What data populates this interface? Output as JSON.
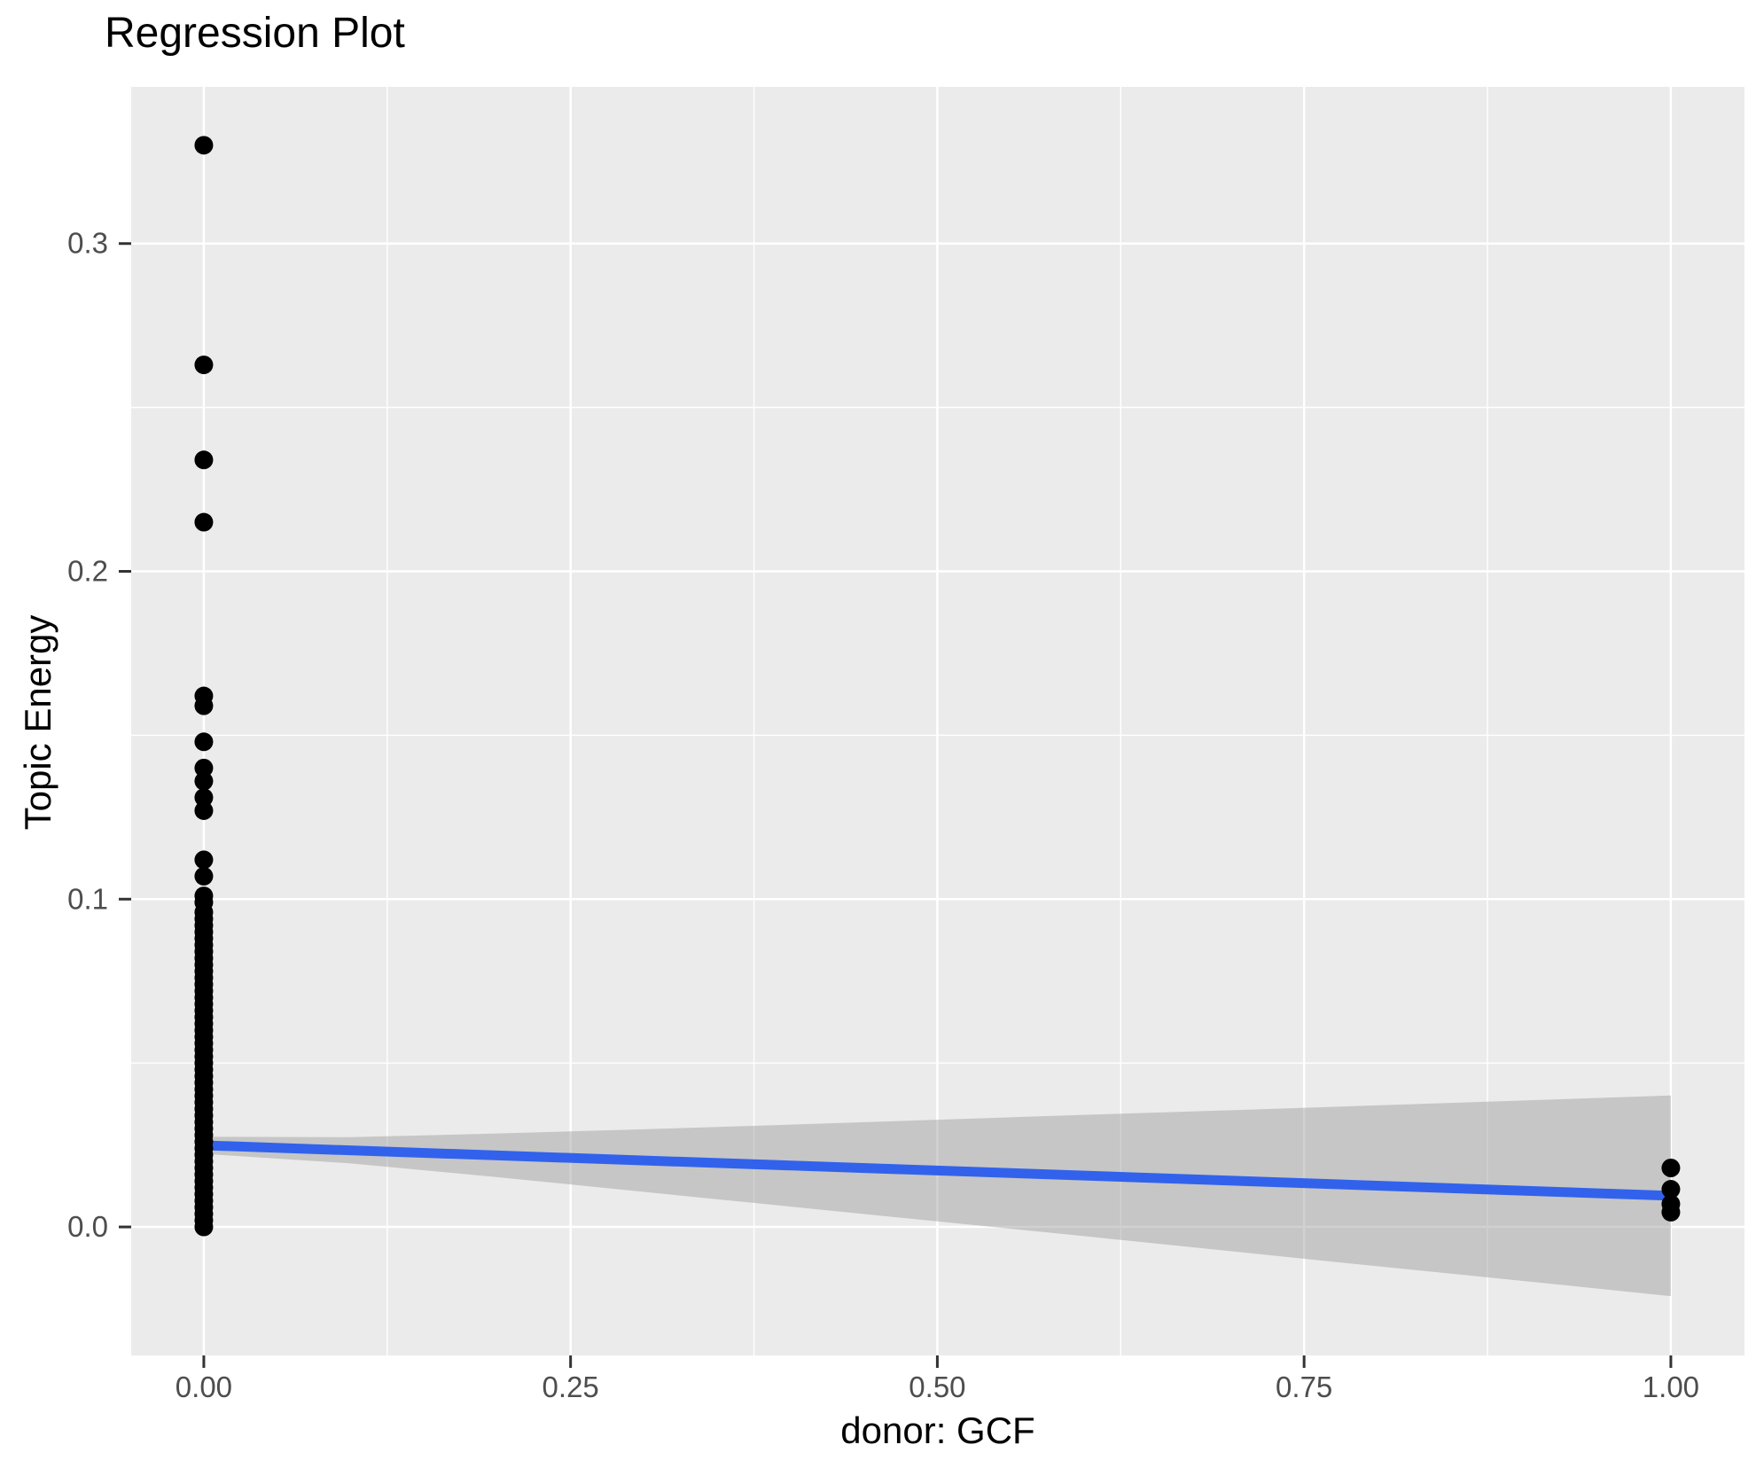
{
  "colors": {
    "panel_background": "#EBEBEB",
    "gridline": "#FFFFFF",
    "point": "#000000",
    "regression_line": "#3262EC",
    "confidence_band": "rgba(153,153,153,0.45)",
    "tick_label": "#4D4D4D",
    "tick_mark": "#333333",
    "title_text": "#000000"
  },
  "chart_data": {
    "type": "scatter",
    "title": "Regression Plot",
    "xlabel": "donor: GCF",
    "ylabel": "Topic Energy",
    "x_domain": [
      -0.0495,
      1.0502
    ],
    "y_domain": [
      -0.0392,
      0.3478
    ],
    "x_major_ticks": [
      {
        "v": 0.0,
        "label": "0.00"
      },
      {
        "v": 0.25,
        "label": "0.25"
      },
      {
        "v": 0.5,
        "label": "0.50"
      },
      {
        "v": 0.75,
        "label": "0.75"
      },
      {
        "v": 1.0,
        "label": "1.00"
      }
    ],
    "x_minor_ticks": [
      0.125,
      0.375,
      0.625,
      0.875
    ],
    "y_major_ticks": [
      {
        "v": 0.0,
        "label": "0.0"
      },
      {
        "v": 0.1,
        "label": "0.1"
      },
      {
        "v": 0.2,
        "label": "0.2"
      },
      {
        "v": 0.3,
        "label": "0.3"
      }
    ],
    "y_minor_ticks": [
      0.05,
      0.15,
      0.25
    ],
    "point_radius": 10.5,
    "points_x0": [
      0.33,
      0.263,
      0.234,
      0.215,
      0.162,
      0.159,
      0.148,
      0.14,
      0.136,
      0.131,
      0.127,
      0.112,
      0.107,
      0.101,
      0.099,
      0.096,
      0.094,
      0.092,
      0.09,
      0.088,
      0.086,
      0.084,
      0.082,
      0.08,
      0.078,
      0.076,
      0.074,
      0.072,
      0.07,
      0.068,
      0.066,
      0.064,
      0.062,
      0.06,
      0.058,
      0.056,
      0.054,
      0.052,
      0.05,
      0.048,
      0.046,
      0.044,
      0.042,
      0.04,
      0.038,
      0.036,
      0.034,
      0.032,
      0.03,
      0.028,
      0.026,
      0.024,
      0.022,
      0.02,
      0.018,
      0.016,
      0.014,
      0.012,
      0.01,
      0.008,
      0.006,
      0.004,
      0.002,
      0.0
    ],
    "points_x1": [
      0.018,
      0.0115,
      0.007,
      0.0045
    ],
    "regression_line": {
      "x": [
        0,
        1
      ],
      "y": [
        0.0249,
        0.0095
      ]
    },
    "confidence_band": [
      {
        "x": 0.0,
        "top": 0.0275,
        "bottom": 0.0223
      },
      {
        "x": 0.1,
        "top": 0.0274,
        "bottom": 0.0194
      },
      {
        "x": 0.2,
        "top": 0.0285,
        "bottom": 0.0152
      },
      {
        "x": 0.3,
        "top": 0.0298,
        "bottom": 0.0107
      },
      {
        "x": 0.4,
        "top": 0.0312,
        "bottom": 0.0062
      },
      {
        "x": 0.5,
        "top": 0.0327,
        "bottom": 0.0017
      },
      {
        "x": 0.6,
        "top": 0.0342,
        "bottom": -0.0028
      },
      {
        "x": 0.7,
        "top": 0.0356,
        "bottom": -0.0074
      },
      {
        "x": 0.8,
        "top": 0.0371,
        "bottom": -0.012
      },
      {
        "x": 0.9,
        "top": 0.0386,
        "bottom": -0.0165
      },
      {
        "x": 1.0,
        "top": 0.0401,
        "bottom": -0.0211
      }
    ]
  }
}
